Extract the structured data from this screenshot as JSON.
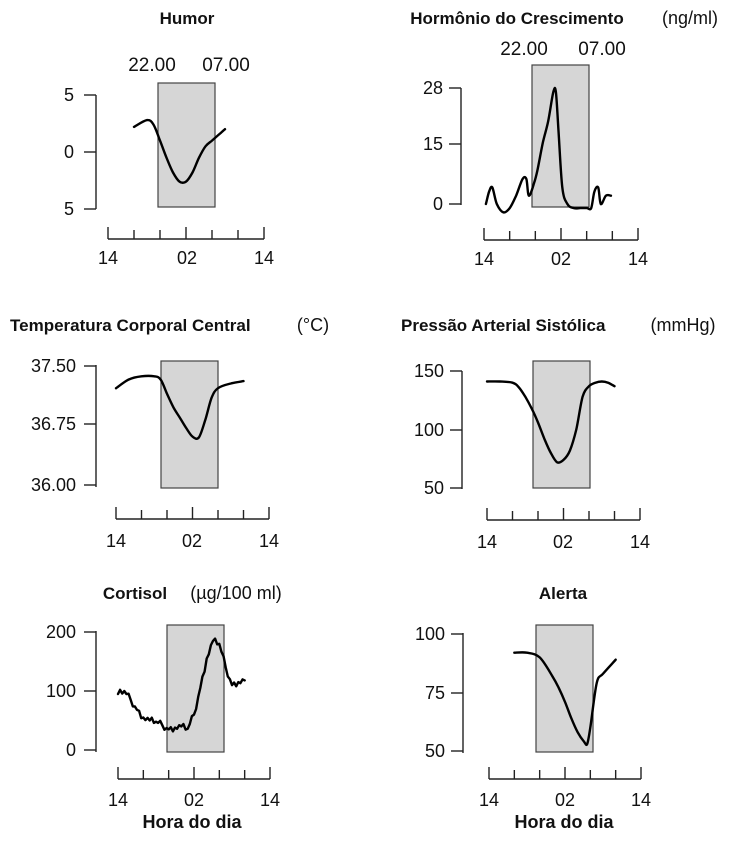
{
  "chart_data": [
    {
      "type": "line",
      "title": "Humor",
      "unit": "",
      "xlabel": "",
      "x_tick_labels": [
        "14",
        "02",
        "14"
      ],
      "night_window": {
        "start_hour": 22,
        "end_hour": 7
      },
      "time_labels": [
        "22.00",
        "07.00"
      ],
      "y_tick_values": [
        5,
        0,
        -5
      ],
      "y_tick_labels": [
        "5",
        "0",
        "5"
      ],
      "ylim": [
        -5,
        5
      ],
      "x": [
        18,
        20,
        21,
        22,
        23,
        24,
        25,
        26,
        27,
        28,
        29,
        30,
        31,
        32
      ],
      "y": [
        2.2,
        2.8,
        2.4,
        1.0,
        -0.5,
        -1.8,
        -2.6,
        -2.6,
        -1.8,
        -0.5,
        0.5,
        1.0,
        1.5,
        2.0
      ]
    },
    {
      "type": "line",
      "title": "Hormônio do Crescimento",
      "unit": "(ng/ml)",
      "xlabel": "",
      "x_tick_labels": [
        "14",
        "02",
        "14"
      ],
      "night_window": {
        "start_hour": 22,
        "end_hour": 7
      },
      "time_labels": [
        "22.00",
        "07.00"
      ],
      "y_tick_values": [
        28,
        15,
        0
      ],
      "y_tick_labels": [
        "28",
        "15",
        "0"
      ],
      "ylim": [
        0,
        28
      ],
      "x": [
        14.3,
        14.8,
        15.3,
        16,
        17,
        18,
        19,
        20,
        20.6,
        21,
        21.8,
        22.3,
        23.2,
        24,
        24.8,
        25.2,
        25.6,
        26.2,
        27,
        28,
        29,
        30,
        30.7,
        31.2,
        31.8,
        32.2,
        33,
        33.8
      ],
      "y": [
        0,
        3,
        4,
        0,
        -2,
        -1,
        2,
        6,
        6,
        2,
        5,
        8,
        15,
        20,
        27,
        27,
        18,
        4,
        0,
        -1,
        -1,
        -1,
        -1,
        3,
        4,
        0,
        2,
        2
      ]
    },
    {
      "type": "line",
      "title": "Temperatura Corporal Central",
      "unit": "(°C)",
      "xlabel": "",
      "x_tick_labels": [
        "14",
        "02",
        "14"
      ],
      "night_window": {
        "start_hour": 22,
        "end_hour": 7
      },
      "y_tick_values": [
        37.5,
        36.75,
        36.0
      ],
      "y_tick_labels": [
        "37.50",
        "36.75",
        "36.00"
      ],
      "ylim": [
        36.0,
        37.5
      ],
      "x": [
        14,
        16,
        18,
        20,
        21,
        22,
        23,
        24,
        25,
        26,
        27,
        28,
        29,
        30,
        32,
        34
      ],
      "y": [
        37.22,
        37.33,
        37.37,
        37.37,
        37.33,
        37.15,
        36.98,
        36.85,
        36.72,
        36.61,
        36.6,
        36.82,
        37.1,
        37.22,
        37.28,
        37.31
      ]
    },
    {
      "type": "line",
      "title": "Pressão Arterial Sistólica",
      "unit": "(mmHg)",
      "xlabel": "",
      "x_tick_labels": [
        "14",
        "02",
        "14"
      ],
      "night_window": {
        "start_hour": 22,
        "end_hour": 7
      },
      "y_tick_values": [
        150,
        100,
        50
      ],
      "y_tick_labels": [
        "150",
        "100",
        "50"
      ],
      "ylim": [
        50,
        150
      ],
      "x": [
        14,
        16,
        18,
        19,
        20,
        21,
        22,
        23,
        24,
        25,
        26,
        27,
        28,
        29,
        30,
        31,
        32,
        33,
        34
      ],
      "y": [
        141,
        141,
        140,
        136,
        128,
        118,
        106,
        92,
        80,
        72,
        74,
        82,
        100,
        128,
        137,
        140,
        141,
        140,
        137
      ]
    },
    {
      "type": "line",
      "title": "Cortisol",
      "unit": "(µg/100 ml)",
      "xlabel": "Hora do dia",
      "x_tick_labels": [
        "14",
        "02",
        "14"
      ],
      "night_window": {
        "start_hour": 22,
        "end_hour": 7
      },
      "y_tick_values": [
        200,
        100,
        0
      ],
      "y_tick_labels": [
        "200",
        "100",
        "0"
      ],
      "ylim": [
        0,
        200
      ],
      "x": [
        14,
        15,
        16,
        17,
        18,
        19,
        20,
        21,
        22,
        23,
        24,
        25,
        26,
        27,
        28,
        29,
        30,
        31,
        32,
        33,
        34
      ],
      "y": [
        95,
        100,
        85,
        68,
        55,
        50,
        48,
        42,
        35,
        38,
        40,
        36,
        60,
        105,
        155,
        185,
        180,
        140,
        110,
        115,
        118
      ]
    },
    {
      "type": "line",
      "title": "Alerta",
      "unit": "",
      "xlabel": "Hora do dia",
      "x_tick_labels": [
        "14",
        "02",
        "14"
      ],
      "night_window": {
        "start_hour": 22,
        "end_hour": 7
      },
      "y_tick_values": [
        100,
        75,
        50
      ],
      "y_tick_labels": [
        "100",
        "75",
        "50"
      ],
      "ylim": [
        50,
        100
      ],
      "x": [
        18,
        20,
        22,
        24,
        25,
        26,
        27,
        28,
        29,
        29.5,
        30,
        31,
        32,
        34
      ],
      "y": [
        92,
        92,
        90,
        82,
        77,
        71,
        64,
        58,
        54,
        53,
        60,
        79,
        83,
        89
      ]
    }
  ]
}
